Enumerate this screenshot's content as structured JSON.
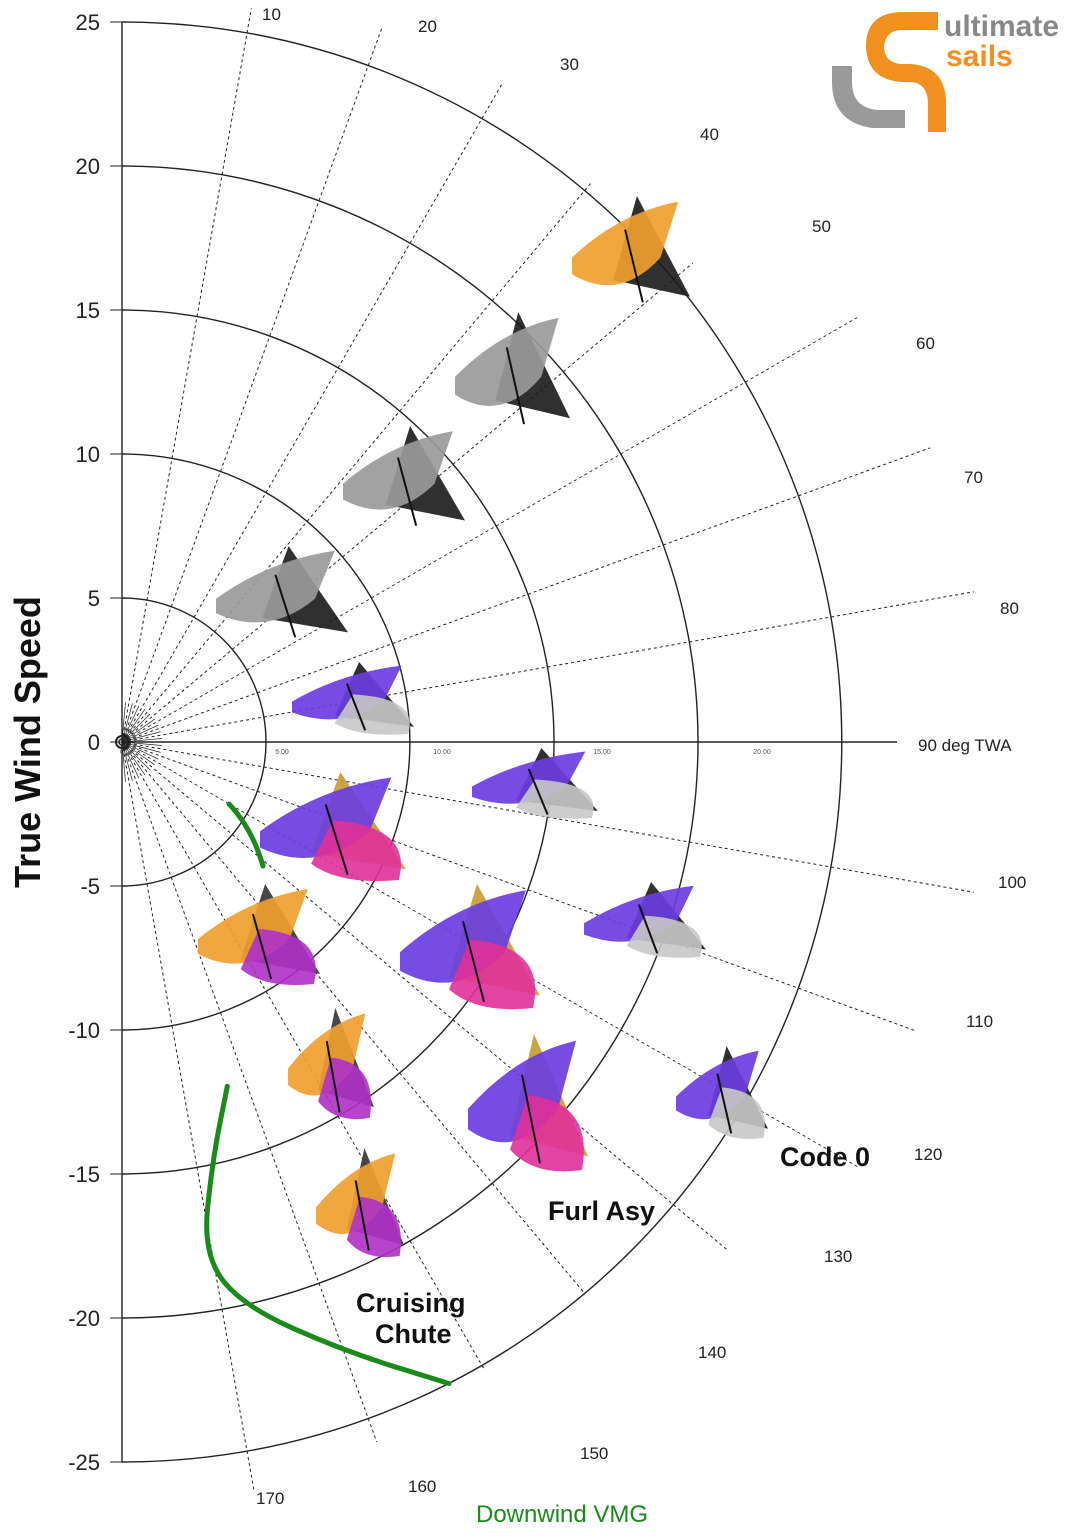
{
  "chart_data": {
    "type": "polar",
    "title": "True Wind Speed",
    "ylabel": "True Wind Speed",
    "radial_axis": {
      "min": -25,
      "max": 25,
      "ticks": [
        25,
        20,
        15,
        10,
        5,
        0,
        -5,
        -10,
        -15,
        -20,
        -25
      ]
    },
    "angle_labels": [
      "10",
      "20",
      "30",
      "40",
      "50",
      "60",
      "70",
      "80",
      "90 deg TWA",
      "100",
      "110",
      "120",
      "130",
      "140",
      "150",
      "160",
      "170"
    ],
    "boat_speed_ticks": [
      "0",
      "5.00",
      "10.00",
      "15.00",
      "20.00"
    ],
    "sail_regions": [
      {
        "name": "Code 0",
        "color": "#6a3de0"
      },
      {
        "name": "Furl Asy",
        "color": "#e0309a"
      },
      {
        "name": "Cruising Chute",
        "color": "#f0a030"
      }
    ],
    "series": [
      {
        "name": "Downwind VMG",
        "color": "#1a8a1a",
        "points": [
          {
            "twa": 163,
            "tws": 12.5
          },
          {
            "twa": 168,
            "tws": 15
          },
          {
            "twa": 171,
            "tws": 18
          },
          {
            "twa": 168,
            "tws": 20
          },
          {
            "twa": 160,
            "tws": 22.5
          },
          {
            "twa": 153,
            "tws": 25
          }
        ]
      }
    ],
    "legend": "bottom"
  },
  "logo": {
    "line1": "ultimate",
    "line2": "sails"
  },
  "labels": {
    "code0": "Code 0",
    "furl": "Furl Asy",
    "chute1": "Cruising",
    "chute2": "Chute",
    "vmg": "Downwind VMG"
  }
}
